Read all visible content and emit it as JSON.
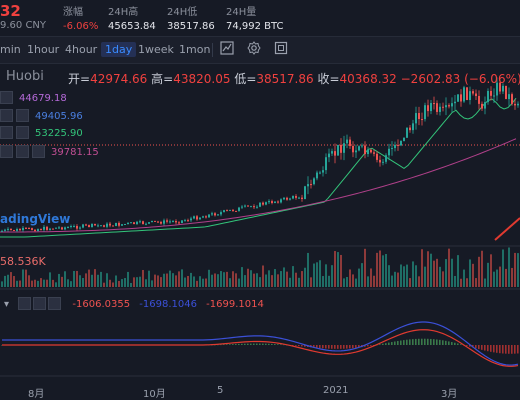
{
  "header": {
    "price": "32",
    "cny": "9.60 CNY",
    "change_label": "涨幅",
    "change_value": "-6.06%",
    "high_label": "24H高",
    "high_value": "45653.84",
    "low_label": "24H低",
    "low_value": "38517.86",
    "vol_label": "24H量",
    "vol_value": "74,992 BTC"
  },
  "toolbar": {
    "timeframes": [
      "min",
      "1hour",
      "4hour",
      "1day",
      "1week",
      "1mon"
    ],
    "active": "1day"
  },
  "legend": {
    "symbol": "Huobi",
    "open_label": "开=",
    "open_value": "42974.66",
    "high_label": "高=",
    "high_value": "43820.05",
    "low_label": "低=",
    "low_value": "38517.86",
    "close_label": "收=",
    "close_value": "40368.32",
    "change": "−2602.83 (−6.06%)"
  },
  "ma": {
    "ma1": "44679.18",
    "ma2": "49405.96",
    "ma3": "53225.90",
    "ma4": "39781.15",
    "colors": {
      "ma1": "#b56ad8",
      "ma2": "#4a7fe0",
      "ma3": "#33c47a",
      "ma4": "#c24f94"
    }
  },
  "volume": {
    "label": "58.536K"
  },
  "macd": {
    "v1": "-1606.0355",
    "v2": "-1698.1046",
    "v3": "-1699.1014"
  },
  "watermark": "adingView",
  "xaxis": [
    "8月",
    "10月",
    "5",
    "2021",
    "3月"
  ],
  "colors": {
    "up": "#26a69a",
    "down": "#ef5350",
    "bg": "#161a25"
  }
}
